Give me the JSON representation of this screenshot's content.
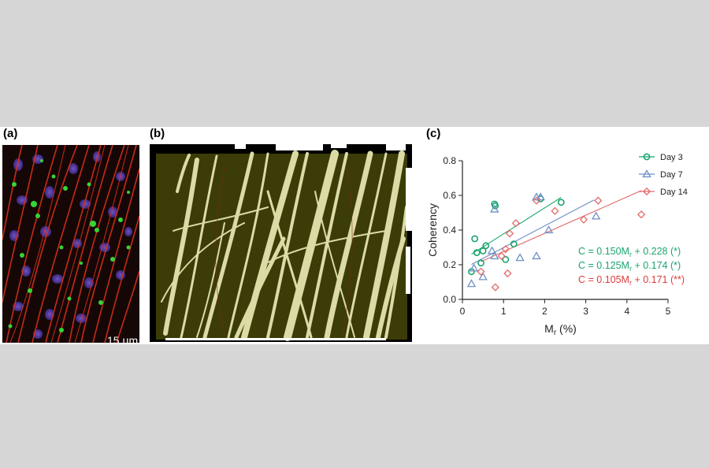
{
  "figure": {
    "panel_a": {
      "label": "(a)",
      "scale_bar": "15 µm"
    },
    "panel_b": {
      "label": "(b)"
    },
    "panel_c": {
      "label": "(c)"
    }
  },
  "colors": {
    "day3": "#1aa56d",
    "day7": "#6f8fc6",
    "day14": "#e36a6a",
    "eq_day14": "#e03a3a",
    "panel_b_bg": "#3c3c08",
    "panel_b_fiber": "#dcdba6"
  },
  "chart_data": {
    "type": "scatter",
    "xlabel_main": "M",
    "xlabel_sub": "r",
    "xlabel_unit": " (%)",
    "ylabel": "Coherency",
    "xlim": [
      0,
      5
    ],
    "ylim": [
      0,
      0.8
    ],
    "xticks": [
      "0",
      "1",
      "2",
      "3",
      "4",
      "5"
    ],
    "yticks": [
      "0.0",
      "0.2",
      "0.4",
      "0.6",
      "0.8"
    ],
    "legend_position": "top-right",
    "series": [
      {
        "name": "Day 3",
        "marker": "circle",
        "color": "#1aa56d",
        "points": [
          [
            0.22,
            0.16
          ],
          [
            0.3,
            0.35
          ],
          [
            0.35,
            0.27
          ],
          [
            0.45,
            0.21
          ],
          [
            0.5,
            0.28
          ],
          [
            0.57,
            0.31
          ],
          [
            0.78,
            0.55
          ],
          [
            0.8,
            0.54
          ],
          [
            1.05,
            0.23
          ],
          [
            1.25,
            0.32
          ],
          [
            1.9,
            0.58
          ],
          [
            2.4,
            0.56
          ]
        ],
        "fit": {
          "slope": 0.15,
          "intercept": 0.228,
          "x_range": [
            0.22,
            2.4
          ]
        },
        "equation": {
          "prefix": "C = 0.150M",
          "sub": "r",
          "suffix": " + 0.228 (*)"
        }
      },
      {
        "name": "Day 7",
        "marker": "triangle",
        "color": "#6f8fc6",
        "points": [
          [
            0.22,
            0.09
          ],
          [
            0.28,
            0.18
          ],
          [
            0.5,
            0.13
          ],
          [
            0.72,
            0.28
          ],
          [
            0.78,
            0.25
          ],
          [
            0.78,
            0.52
          ],
          [
            1.4,
            0.24
          ],
          [
            1.8,
            0.25
          ],
          [
            1.8,
            0.59
          ],
          [
            1.9,
            0.59
          ],
          [
            2.1,
            0.4
          ],
          [
            3.25,
            0.48
          ]
        ],
        "fit": {
          "slope": 0.125,
          "intercept": 0.174,
          "x_range": [
            0.22,
            3.2
          ]
        },
        "equation": {
          "prefix": "C = 0.125M",
          "sub": "r",
          "suffix": " + 0.174 (*)"
        }
      },
      {
        "name": "Day 14",
        "marker": "diamond",
        "color": "#e36a6a",
        "points": [
          [
            0.45,
            0.16
          ],
          [
            0.8,
            0.07
          ],
          [
            0.95,
            0.25
          ],
          [
            1.05,
            0.29
          ],
          [
            1.1,
            0.15
          ],
          [
            1.15,
            0.38
          ],
          [
            1.3,
            0.44
          ],
          [
            1.8,
            0.57
          ],
          [
            2.25,
            0.51
          ],
          [
            2.95,
            0.46
          ],
          [
            3.3,
            0.57
          ],
          [
            4.35,
            0.49
          ]
        ],
        "fit": {
          "slope": 0.105,
          "intercept": 0.171,
          "x_range": [
            0.45,
            4.35
          ]
        },
        "equation": {
          "prefix": "C = 0.105M",
          "sub": "r",
          "suffix": " + 0.171 (**)"
        }
      }
    ]
  }
}
